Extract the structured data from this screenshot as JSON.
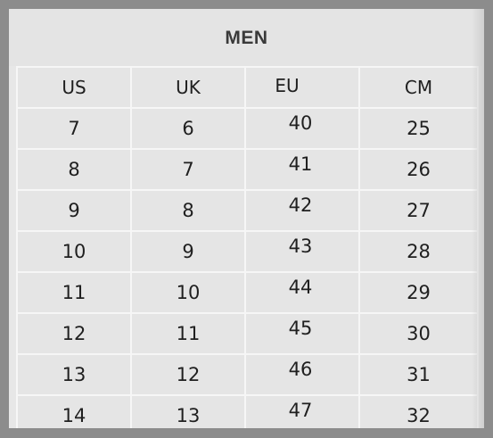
{
  "title": "MEN",
  "headers": [
    "US",
    "UK",
    "EU",
    "CM"
  ],
  "rows": [
    [
      "7",
      "6",
      "40",
      "25"
    ],
    [
      "8",
      "7",
      "41",
      "26"
    ],
    [
      "9",
      "8",
      "42",
      "27"
    ],
    [
      "10",
      "9",
      "43",
      "28"
    ],
    [
      "11",
      "10",
      "44",
      "29"
    ],
    [
      "12",
      "11",
      "45",
      "30"
    ],
    [
      "13",
      "12",
      "46",
      "31"
    ],
    [
      "14",
      "13",
      "47",
      "32"
    ]
  ]
}
